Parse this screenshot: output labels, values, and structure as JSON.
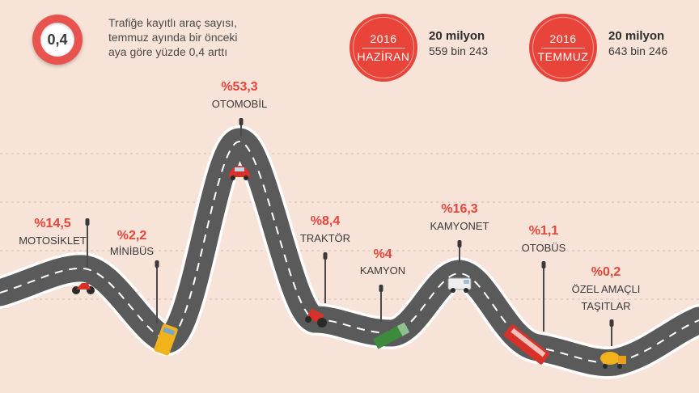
{
  "header": {
    "badge_value": "0,4",
    "description": "Trafiğe kayıtlı araç sayısı,\ntemmuz ayında bir önceki\naya göre yüzde 0,4 arttı"
  },
  "stats": [
    {
      "year": "2016",
      "month": "HAZİRAN",
      "line1": "20 milyon",
      "line2": "559 bin 243"
    },
    {
      "year": "2016",
      "month": "TEMMUZ",
      "line1": "20 milyon",
      "line2": "643 bin 246"
    }
  ],
  "colors": {
    "background": "#f8e3d8",
    "accent": "#e8443a",
    "road": "#5a5a5a",
    "road_edge": "#ffffff",
    "percent": "#e8443a"
  },
  "chart_data": {
    "type": "line",
    "categories": [
      "MOTOSİKLET",
      "MİNİBÜS",
      "OTOMOBİL",
      "TRAKTÖR",
      "KAMYON",
      "KAMYONET",
      "OTOBÜS",
      "ÖZEL AMAÇLI TAŞITLAR"
    ],
    "values": [
      14.5,
      2.2,
      53.3,
      8.4,
      4,
      16.3,
      1.1,
      0.2
    ],
    "value_labels": [
      "%14,5",
      "%2,2",
      "%53,3",
      "%8,4",
      "%4",
      "%16,3",
      "%1,1",
      "%0,2"
    ],
    "vehicle_icons": [
      "motorcycle-icon",
      "minibus-icon",
      "car-icon",
      "tractor-icon",
      "truck-icon",
      "van-icon",
      "bus-icon",
      "cement-mixer-icon"
    ]
  }
}
